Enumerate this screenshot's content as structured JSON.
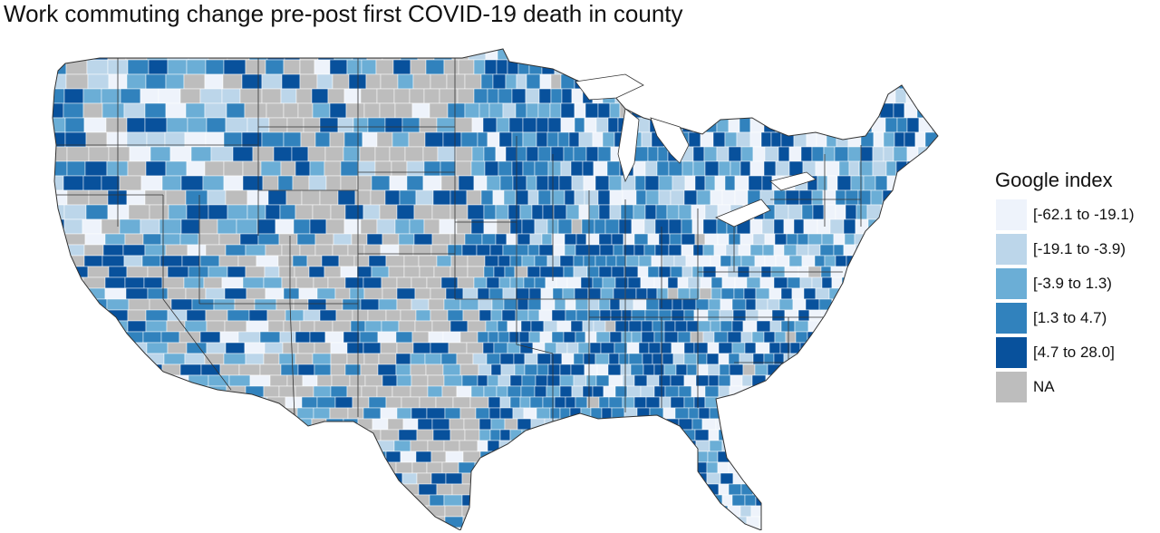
{
  "title": "Work commuting change pre-post first COVID-19 death in county",
  "legend": {
    "title": "Google index",
    "items": [
      {
        "label": "[-62.1 to -19.1)",
        "color": "#eef3fb"
      },
      {
        "label": "[-19.1 to -3.9)",
        "color": "#bcd6ea"
      },
      {
        "label": "[-3.9 to 1.3)",
        "color": "#6baed6"
      },
      {
        "label": "[1.3 to 4.7)",
        "color": "#3182bd"
      },
      {
        "label": "[4.7 to 28.0]",
        "color": "#08519c"
      },
      {
        "label": "NA",
        "color": "#bdbdbd"
      }
    ]
  }
}
